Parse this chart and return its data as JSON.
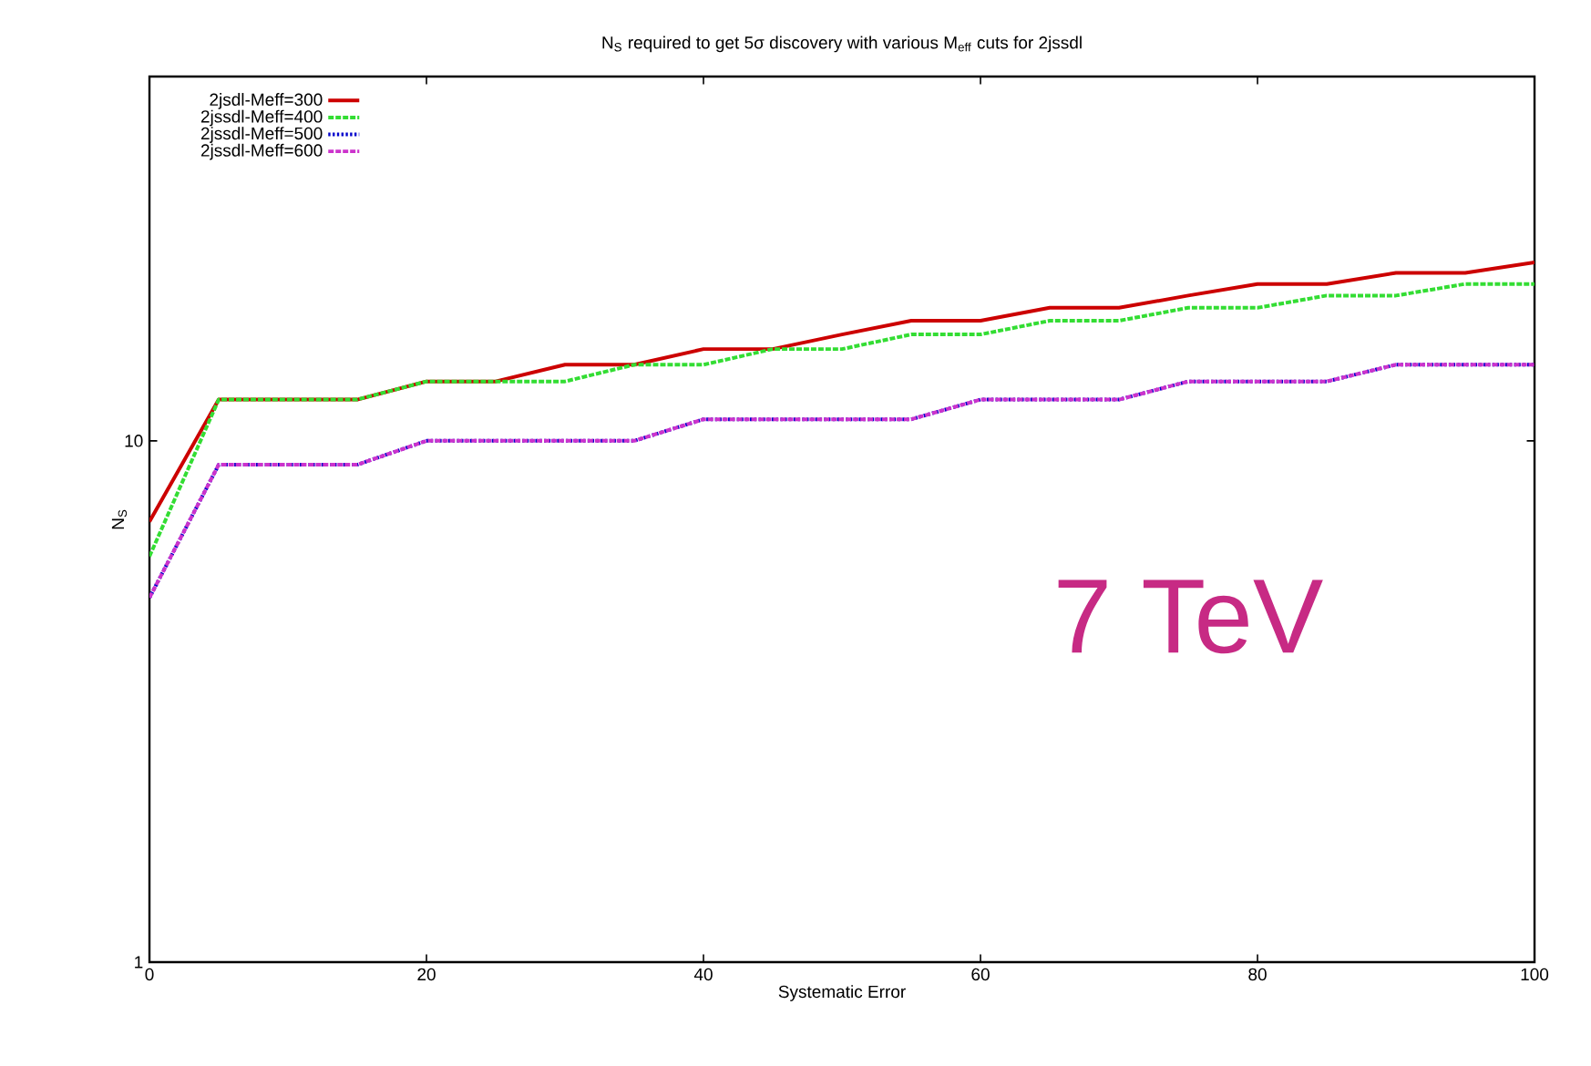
{
  "chart_data": {
    "type": "line",
    "title": "N$_{S}$ required to get 5σ discovery with various M$_{eff}$ cuts for 2jssdl",
    "xlabel": "Systematic Error",
    "ylabel": "N$_{S}$",
    "x": [
      0,
      5,
      10,
      15,
      20,
      25,
      30,
      35,
      40,
      45,
      50,
      55,
      60,
      65,
      70,
      75,
      80,
      85,
      90,
      95,
      100
    ],
    "series": [
      {
        "name": "2jsdl-Meff=300",
        "color": "#cc0000",
        "line_style": "solid",
        "values": [
          7,
          12,
          12,
          12,
          13,
          13,
          14,
          14,
          15,
          15,
          16,
          17,
          17,
          18,
          18,
          19,
          20,
          20,
          21,
          21,
          22
        ]
      },
      {
        "name": "2jssdl-Meff=400",
        "color": "#33dd33",
        "line_style": "dashed",
        "values": [
          6,
          12,
          12,
          12,
          13,
          13,
          13,
          14,
          14,
          15,
          15,
          16,
          16,
          17,
          17,
          18,
          18,
          19,
          19,
          20,
          20
        ]
      },
      {
        "name": "2jssdl-Meff=500",
        "color": "#0000cc",
        "line_style": "dotted",
        "values": [
          5,
          9,
          9,
          9,
          10,
          10,
          10,
          10,
          11,
          11,
          11,
          11,
          12,
          12,
          12,
          13,
          13,
          13,
          14,
          14,
          14
        ]
      },
      {
        "name": "2jssdl-Meff=600",
        "color": "#cc33cc",
        "line_style": "dashed",
        "values": [
          5,
          9,
          9,
          9,
          10,
          10,
          10,
          10,
          11,
          11,
          11,
          11,
          12,
          12,
          12,
          13,
          13,
          13,
          14,
          14,
          14
        ]
      }
    ],
    "xlim": [
      0,
      100
    ],
    "xticks": [
      0,
      20,
      40,
      60,
      80,
      100
    ],
    "ylim": [
      1,
      50
    ],
    "yticks": [
      1,
      10
    ],
    "log": "y",
    "grid": false,
    "legend": "top left",
    "marker": "none",
    "annotations": [
      "7 TeV"
    ]
  }
}
